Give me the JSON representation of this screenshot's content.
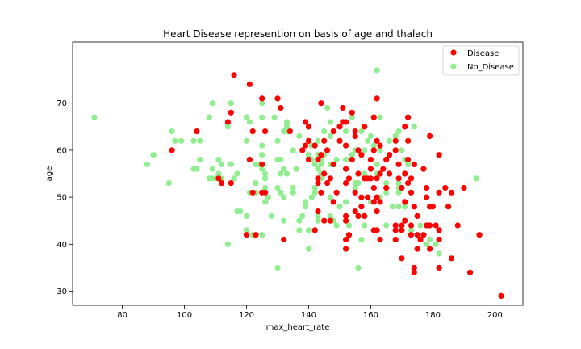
{
  "chart_data": {
    "type": "scatter",
    "title": "Heart Disease represention on basis of age and thalach",
    "xlabel": "max_heart_rate",
    "ylabel": "age",
    "xlim": [
      64,
      209
    ],
    "ylim": [
      27,
      83
    ],
    "xticks": [
      80,
      100,
      120,
      140,
      160,
      180,
      200
    ],
    "yticks": [
      30,
      40,
      50,
      60,
      70
    ],
    "grid": false,
    "legend_position": "top-right",
    "series": [
      {
        "name": "Disease",
        "color": "#ff0000",
        "points": [
          [
            116,
            76
          ],
          [
            121,
            74
          ],
          [
            125,
            71
          ],
          [
            130,
            71
          ],
          [
            162,
            71
          ],
          [
            144,
            70
          ],
          [
            131,
            69
          ],
          [
            151,
            69
          ],
          [
            115,
            68
          ],
          [
            154,
            68
          ],
          [
            161,
            67
          ],
          [
            172,
            67
          ],
          [
            114,
            66
          ],
          [
            139,
            66
          ],
          [
            151,
            66
          ],
          [
            152,
            66
          ],
          [
            158,
            65
          ],
          [
            140,
            65
          ],
          [
            150,
            65
          ],
          [
            171,
            65
          ],
          [
            126,
            64
          ],
          [
            134,
            64
          ],
          [
            155,
            64
          ],
          [
            104,
            64
          ],
          [
            122,
            64
          ],
          [
            148,
            64
          ],
          [
            155,
            63
          ],
          [
            179,
            63
          ],
          [
            140,
            62
          ],
          [
            145,
            62
          ],
          [
            150,
            62
          ],
          [
            162,
            62
          ],
          [
            168,
            62
          ],
          [
            172,
            62
          ],
          [
            139,
            61
          ],
          [
            142,
            61
          ],
          [
            152,
            61
          ],
          [
            163,
            61
          ],
          [
            138,
            60
          ],
          [
            146,
            60
          ],
          [
            156,
            60
          ],
          [
            161,
            60
          ],
          [
            168,
            60
          ],
          [
            96,
            60
          ],
          [
            144,
            59
          ],
          [
            157,
            59
          ],
          [
            166,
            59
          ],
          [
            182,
            59
          ],
          [
            121,
            58
          ],
          [
            140,
            58
          ],
          [
            143,
            58
          ],
          [
            154,
            58
          ],
          [
            160,
            58
          ],
          [
            165,
            58
          ],
          [
            172,
            58
          ],
          [
            125,
            57
          ],
          [
            148,
            57
          ],
          [
            169,
            57
          ],
          [
            174,
            57
          ],
          [
            152,
            56
          ],
          [
            160,
            56
          ],
          [
            164,
            56
          ],
          [
            177,
            56
          ],
          [
            163,
            55
          ],
          [
            166,
            55
          ],
          [
            171,
            55
          ],
          [
            145,
            55
          ],
          [
            156,
            55
          ],
          [
            111,
            54
          ],
          [
            143,
            54
          ],
          [
            147,
            54
          ],
          [
            153,
            54
          ],
          [
            158,
            54
          ],
          [
            159,
            54
          ],
          [
            160,
            54
          ],
          [
            162,
            54
          ],
          [
            169,
            54
          ],
          [
            173,
            54
          ],
          [
            146,
            53
          ],
          [
            112,
            53
          ],
          [
            115,
            53
          ],
          [
            143,
            53
          ],
          [
            152,
            53
          ],
          [
            172,
            53
          ],
          [
            161,
            52
          ],
          [
            165,
            52
          ],
          [
            170,
            52
          ],
          [
            178,
            52
          ],
          [
            184,
            52
          ],
          [
            190,
            52
          ],
          [
            144,
            51
          ],
          [
            149,
            51
          ],
          [
            155,
            51
          ],
          [
            173,
            51
          ],
          [
            182,
            51
          ],
          [
            186,
            51
          ],
          [
            122,
            51
          ],
          [
            126,
            51
          ],
          [
            125,
            51
          ],
          [
            157,
            50
          ],
          [
            159,
            50
          ],
          [
            162,
            50
          ],
          [
            178,
            50
          ],
          [
            148,
            49
          ],
          [
            161,
            49
          ],
          [
            163,
            49
          ],
          [
            171,
            49
          ],
          [
            157,
            48
          ],
          [
            174,
            48
          ],
          [
            179,
            48
          ],
          [
            180,
            48
          ],
          [
            185,
            48
          ],
          [
            143,
            47
          ],
          [
            155,
            47
          ],
          [
            162,
            47
          ],
          [
            156,
            46
          ],
          [
            158,
            46
          ],
          [
            152,
            46
          ],
          [
            175,
            46
          ],
          [
            145,
            45
          ],
          [
            147,
            45
          ],
          [
            152,
            45
          ],
          [
            171,
            45
          ],
          [
            168,
            44
          ],
          [
            170,
            44
          ],
          [
            173,
            44
          ],
          [
            178,
            44
          ],
          [
            179,
            44
          ],
          [
            181,
            44
          ],
          [
            188,
            44
          ],
          [
            168,
            43
          ],
          [
            182,
            43
          ],
          [
            170,
            43
          ],
          [
            161,
            43
          ],
          [
            162,
            43
          ],
          [
            142,
            43
          ],
          [
            120,
            42
          ],
          [
            123,
            42
          ],
          [
            153,
            42
          ],
          [
            173,
            42
          ],
          [
            175,
            42
          ],
          [
            177,
            42
          ],
          [
            195,
            42
          ],
          [
            132,
            41
          ],
          [
            152,
            41
          ],
          [
            163,
            41
          ],
          [
            168,
            41
          ],
          [
            176,
            41
          ],
          [
            182,
            41
          ],
          [
            152,
            39
          ],
          [
            175,
            39
          ],
          [
            179,
            39
          ],
          [
            186,
            37
          ],
          [
            170,
            37
          ],
          [
            174,
            35
          ],
          [
            182,
            35
          ],
          [
            174,
            34
          ],
          [
            192,
            34
          ],
          [
            202,
            29
          ]
        ]
      },
      {
        "name": "No_Disease",
        "color": "#90ee90",
        "points": [
          [
            162,
            77
          ],
          [
            109,
            70
          ],
          [
            115,
            70
          ],
          [
            125,
            70
          ],
          [
            146,
            69
          ],
          [
            71,
            67
          ],
          [
            108,
            67
          ],
          [
            120,
            67
          ],
          [
            125,
            67
          ],
          [
            129,
            67
          ],
          [
            154,
            67
          ],
          [
            163,
            67
          ],
          [
            121,
            66
          ],
          [
            147,
            66
          ],
          [
            133,
            66
          ],
          [
            114,
            65
          ],
          [
            133,
            65
          ],
          [
            174,
            65
          ],
          [
            145,
            64
          ],
          [
            152,
            64
          ],
          [
            157,
            64
          ],
          [
            169,
            64
          ],
          [
            96,
            64
          ],
          [
            132,
            64
          ],
          [
            133,
            64
          ],
          [
            105,
            62
          ],
          [
            97,
            62
          ],
          [
            99,
            62
          ],
          [
            103,
            62
          ],
          [
            143,
            62
          ],
          [
            130,
            62
          ],
          [
            120,
            62
          ],
          [
            147,
            63
          ],
          [
            155,
            63
          ],
          [
            160,
            63
          ],
          [
            168,
            63
          ],
          [
            137,
            63
          ],
          [
            159,
            62
          ],
          [
            166,
            62
          ],
          [
            161,
            61
          ],
          [
            125,
            61
          ],
          [
            141,
            61
          ],
          [
            135,
            60
          ],
          [
            146,
            60
          ],
          [
            155,
            60
          ],
          [
            158,
            60
          ],
          [
            163,
            60
          ],
          [
            170,
            60
          ],
          [
            140,
            59
          ],
          [
            143,
            59
          ],
          [
            145,
            59
          ],
          [
            154,
            59
          ],
          [
            90,
            59
          ],
          [
            125,
            59
          ],
          [
            141,
            58
          ],
          [
            144,
            58
          ],
          [
            130,
            58
          ],
          [
            131,
            58
          ],
          [
            149,
            58
          ],
          [
            152,
            58
          ],
          [
            160,
            58
          ],
          [
            165,
            58
          ],
          [
            171,
            58
          ],
          [
            105,
            58
          ],
          [
            111,
            58
          ],
          [
            172,
            57
          ],
          [
            174,
            57
          ],
          [
            112,
            57
          ],
          [
            115,
            57
          ],
          [
            123,
            57
          ],
          [
            124,
            57
          ],
          [
            144,
            57
          ],
          [
            147,
            57
          ],
          [
            88,
            57
          ],
          [
            142,
            57
          ],
          [
            162,
            57
          ],
          [
            104,
            56
          ],
          [
            109,
            56
          ],
          [
            103,
            56
          ],
          [
            125,
            56
          ],
          [
            132,
            56
          ],
          [
            136,
            56
          ],
          [
            143,
            56
          ],
          [
            111,
            55
          ],
          [
            117,
            55
          ],
          [
            126,
            55
          ],
          [
            133,
            55
          ],
          [
            131,
            55
          ],
          [
            144,
            55
          ],
          [
            162,
            55
          ],
          [
            158,
            55
          ],
          [
            112,
            54
          ],
          [
            194,
            54
          ],
          [
            108,
            54
          ],
          [
            109,
            54
          ],
          [
            110,
            54
          ],
          [
            116,
            54
          ],
          [
            126,
            54
          ],
          [
            144,
            54
          ],
          [
            95,
            53
          ],
          [
            123,
            53
          ],
          [
            152,
            53
          ],
          [
            155,
            53
          ],
          [
            156,
            53
          ],
          [
            165,
            53
          ],
          [
            169,
            53
          ],
          [
            130,
            52
          ],
          [
            126,
            52
          ],
          [
            135,
            52
          ],
          [
            142,
            52
          ],
          [
            155,
            52
          ],
          [
            169,
            52
          ],
          [
            131,
            51
          ],
          [
            135,
            51
          ],
          [
            142,
            51
          ],
          [
            165,
            51
          ],
          [
            169,
            51
          ],
          [
            173,
            51
          ],
          [
            121,
            51
          ],
          [
            123,
            51
          ],
          [
            141,
            50
          ],
          [
            147,
            50
          ],
          [
            163,
            50
          ],
          [
            127,
            50
          ],
          [
            132,
            50
          ],
          [
            126,
            49
          ],
          [
            139,
            49
          ],
          [
            152,
            49
          ],
          [
            160,
            49
          ],
          [
            117,
            47
          ],
          [
            118,
            47
          ],
          [
            139,
            48
          ],
          [
            150,
            48
          ],
          [
            167,
            48
          ],
          [
            169,
            48
          ],
          [
            171,
            48
          ],
          [
            120,
            46
          ],
          [
            128,
            46
          ],
          [
            138,
            46
          ],
          [
            143,
            46
          ],
          [
            147,
            46
          ],
          [
            148,
            45
          ],
          [
            132,
            45
          ],
          [
            137,
            45
          ],
          [
            143,
            45
          ],
          [
            149,
            44
          ],
          [
            153,
            44
          ],
          [
            158,
            44
          ],
          [
            165,
            44
          ],
          [
            176,
            44
          ],
          [
            140,
            43
          ],
          [
            120,
            43
          ],
          [
            137,
            43
          ],
          [
            142,
            43
          ],
          [
            173,
            43
          ],
          [
            125,
            42
          ],
          [
            122,
            42
          ],
          [
            157,
            41
          ],
          [
            179,
            41
          ],
          [
            178,
            40
          ],
          [
            114,
            40
          ],
          [
            181,
            40
          ],
          [
            140,
            39
          ],
          [
            182,
            38
          ],
          [
            156,
            35
          ],
          [
            130,
            35
          ]
        ]
      }
    ]
  }
}
